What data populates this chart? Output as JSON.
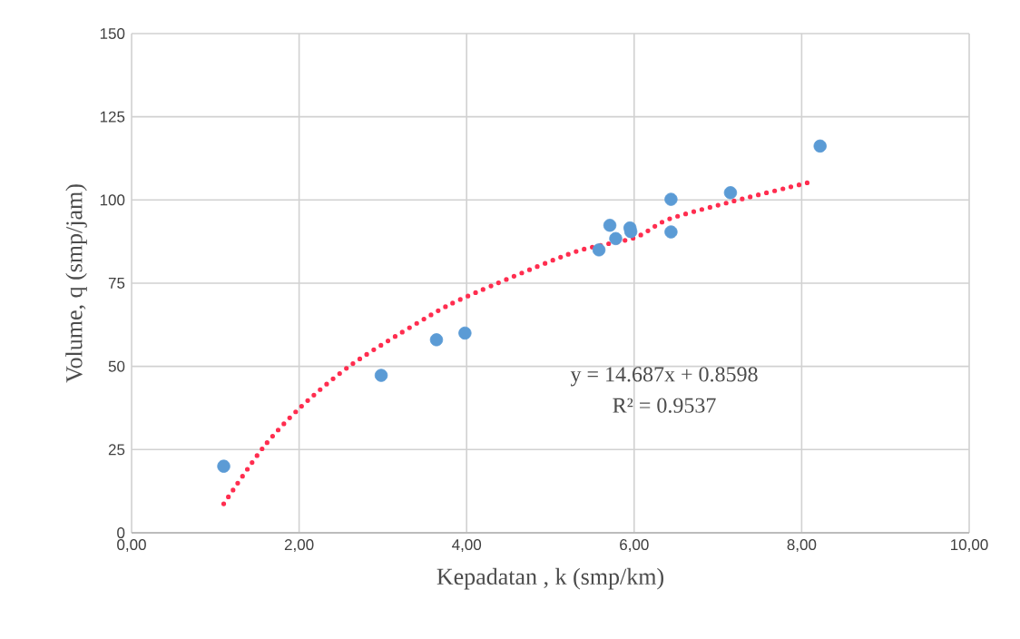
{
  "chart_data": {
    "type": "scatter",
    "xlabel": "Kepadatan , k (smp/km)",
    "ylabel": "Volume, q (smp/jam)",
    "series": [
      {
        "color": "#5b9bd5",
        "x": [
          1.1,
          2.98,
          3.64,
          3.98,
          5.58,
          5.71,
          5.78,
          5.95,
          5.96,
          6.44,
          6.44,
          7.15,
          8.22
        ],
        "values": [
          20,
          47.3,
          58,
          60,
          85,
          92.4,
          88.4,
          91.6,
          90.5,
          100.2,
          90.4,
          102.2,
          116.2
        ]
      },
      {
        "type": "line",
        "marker": "none",
        "color": "#ff2d4f",
        "line_style": "dotted",
        "x": [
          1.1,
          1.57,
          2.02,
          2.64,
          3.55,
          4.03,
          5.27,
          6.0,
          6.41,
          7.18,
          8.09
        ],
        "values": [
          8.7,
          25.6,
          37.8,
          50.8,
          65.1,
          71.3,
          84.2,
          88.6,
          94.2,
          99.6,
          105.3
        ]
      }
    ],
    "annotations": [
      "y = 14.687x + 0.8598",
      "R² = 0.9537"
    ],
    "xlim": [
      0,
      10
    ],
    "ylim": [
      0,
      150
    ],
    "xticks": [
      {
        "value": 0,
        "label": "0,00"
      },
      {
        "value": 2,
        "label": "2,00"
      },
      {
        "value": 4,
        "label": "4,00"
      },
      {
        "value": 6,
        "label": "6,00"
      },
      {
        "value": 8,
        "label": "8,00"
      },
      {
        "value": 10,
        "label": "10,00"
      }
    ],
    "yticks": [
      0,
      25,
      50,
      75,
      100,
      125,
      150
    ],
    "grid": true,
    "marker": "circle"
  }
}
